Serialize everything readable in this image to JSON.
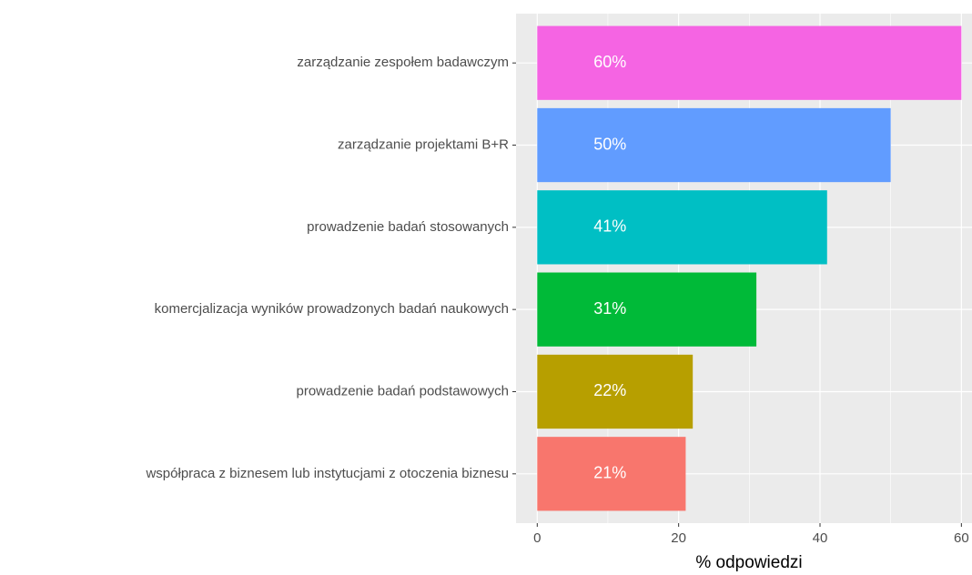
{
  "chart_data": {
    "type": "barh",
    "categories": [
      "zarządzanie zespołem badawczym",
      "zarządzanie projektami B+R",
      "prowadzenie badań stosowanych",
      "komercjalizacja wyników prowadzonych badań naukowych",
      "prowadzenie badań podstawowych",
      "współpraca z biznesem lub instytucjami z otoczenia biznesu"
    ],
    "values": [
      60,
      50,
      41,
      31,
      22,
      21
    ],
    "value_labels": [
      "60%",
      "50%",
      "41%",
      "31%",
      "22%",
      "21%"
    ],
    "colors": [
      "#F564E3",
      "#619CFF",
      "#00BFC4",
      "#00BA38",
      "#B79F00",
      "#F8766D"
    ],
    "xlabel": "% odpowiedzi",
    "xlim": [
      -3,
      61.5
    ],
    "xticks": [
      0,
      20,
      40,
      60
    ],
    "x_minor_ticks": [
      10,
      30,
      50
    ],
    "grid": true
  }
}
